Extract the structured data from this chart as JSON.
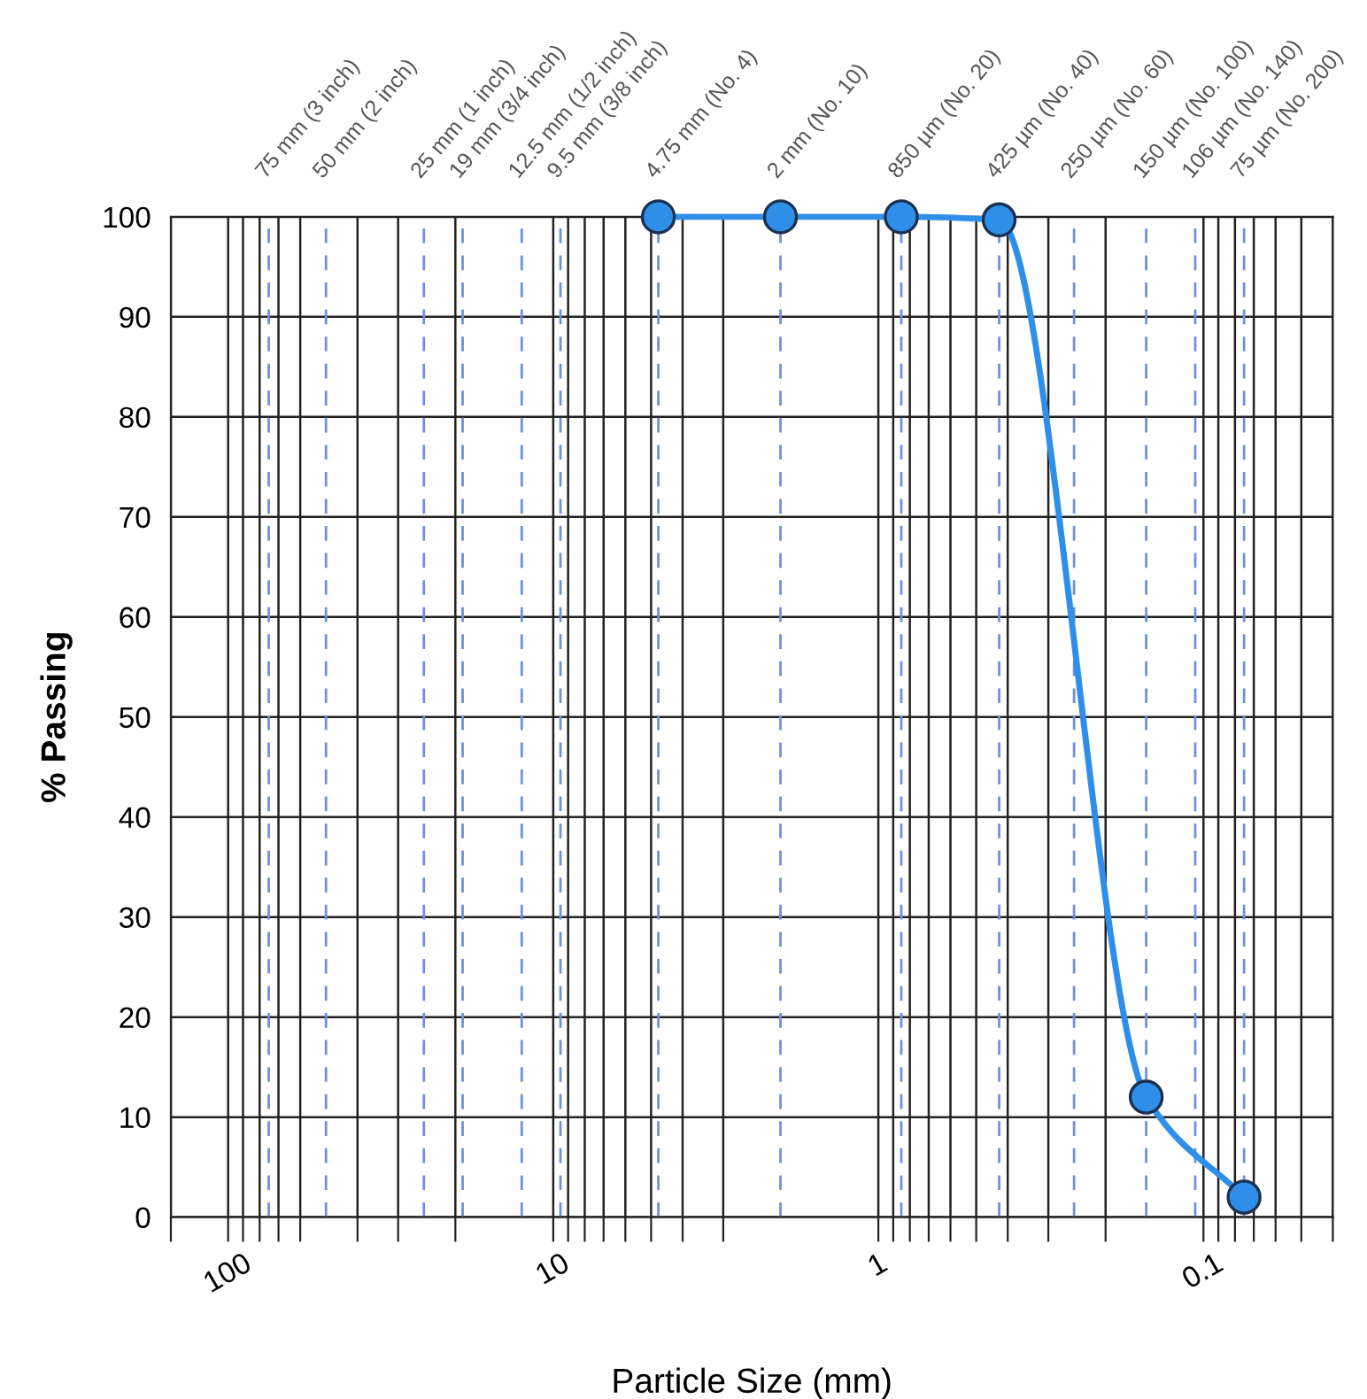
{
  "chart_data": {
    "type": "line",
    "xlabel": "Particle Size (mm)",
    "ylabel": "% Passing",
    "log": "x",
    "xlim": [
      150,
      0.04
    ],
    "ylim": [
      0,
      100
    ],
    "xticks": [
      {
        "value": 150,
        "label": null
      },
      100,
      {
        "value": 90,
        "label": null
      },
      {
        "value": 80,
        "label": null
      },
      {
        "value": 70,
        "label": null
      },
      {
        "value": 60,
        "label": null
      },
      {
        "value": 40,
        "label": null
      },
      {
        "value": 30,
        "label": null
      },
      {
        "value": 20,
        "label": null
      },
      10,
      {
        "value": 9,
        "label": null
      },
      {
        "value": 8,
        "label": null
      },
      {
        "value": 7,
        "label": null
      },
      {
        "value": 6,
        "label": null
      },
      {
        "value": 5,
        "label": null
      },
      {
        "value": 4,
        "label": null
      },
      {
        "value": 3,
        "label": null
      },
      1,
      {
        "value": 0.9,
        "label": null
      },
      {
        "value": 0.8,
        "label": null
      },
      {
        "value": 0.7,
        "label": null
      },
      {
        "value": 0.6,
        "label": null
      },
      {
        "value": 0.5,
        "label": null
      },
      {
        "value": 0.4,
        "label": null
      },
      {
        "value": 0.3,
        "label": null
      },
      {
        "value": 0.2,
        "label": null
      },
      0.1,
      {
        "value": 0.09,
        "label": null
      },
      {
        "value": 0.08,
        "label": null
      },
      {
        "value": 0.07,
        "label": null
      },
      {
        "value": 0.06,
        "label": null
      },
      {
        "value": 0.05,
        "label": null
      },
      {
        "value": 0.04,
        "label": null
      }
    ],
    "yticks": [
      0,
      10,
      20,
      30,
      40,
      50,
      60,
      70,
      80,
      90,
      100
    ],
    "grid": true,
    "marker": "circle",
    "line_style": "solid",
    "series": [
      {
        "color": "#2f8fe8",
        "x": [
          4.75,
          2,
          0.85,
          0.425,
          0.15,
          0.075
        ],
        "values": [
          100,
          100,
          100,
          99.7,
          12,
          2
        ]
      }
    ],
    "ref_lines": [
      {
        "axis": "x",
        "value": 75,
        "label": "75 mm (3 inch)",
        "color": "#6f8fe0",
        "line_style": "dashed"
      },
      {
        "axis": "x",
        "value": 50,
        "label": "50 mm (2 inch)",
        "color": "#6f8fe0",
        "line_style": "dashed"
      },
      {
        "axis": "x",
        "value": 25,
        "label": "25 mm (1 inch)",
        "color": "#6f8fe0",
        "line_style": "dashed"
      },
      {
        "axis": "x",
        "value": 19,
        "label": "19 mm (3/4 inch)",
        "color": "#6f8fe0",
        "line_style": "dashed"
      },
      {
        "axis": "x",
        "value": 12.5,
        "label": "12.5 mm (1/2 inch)",
        "color": "#6f8fe0",
        "line_style": "dashed"
      },
      {
        "axis": "x",
        "value": 9.5,
        "label": "9.5 mm (3/8 inch)",
        "color": "#6f8fe0",
        "line_style": "dashed"
      },
      {
        "axis": "x",
        "value": 4.75,
        "label": "4.75 mm (No. 4)",
        "color": "#6f8fe0",
        "line_style": "dashed"
      },
      {
        "axis": "x",
        "value": 2,
        "label": "2 mm (No. 10)",
        "color": "#6f8fe0",
        "line_style": "dashed"
      },
      {
        "axis": "x",
        "value": 0.85,
        "label": "850 µm (No. 20)",
        "color": "#6f8fe0",
        "line_style": "dashed"
      },
      {
        "axis": "x",
        "value": 0.425,
        "label": "425 µm (No. 40)",
        "color": "#6f8fe0",
        "line_style": "dashed"
      },
      {
        "axis": "x",
        "value": 0.25,
        "label": "250 µm (No. 60)",
        "color": "#6f8fe0",
        "line_style": "dashed"
      },
      {
        "axis": "x",
        "value": 0.15,
        "label": "150 µm (No. 100)",
        "color": "#6f8fe0",
        "line_style": "dashed"
      },
      {
        "axis": "x",
        "value": 0.106,
        "label": "106 µm (No. 140)",
        "color": "#6f8fe0",
        "line_style": "dashed"
      },
      {
        "axis": "x",
        "value": 0.075,
        "label": "75 µm (No. 200)",
        "color": "#6f8fe0",
        "line_style": "dashed"
      }
    ]
  }
}
